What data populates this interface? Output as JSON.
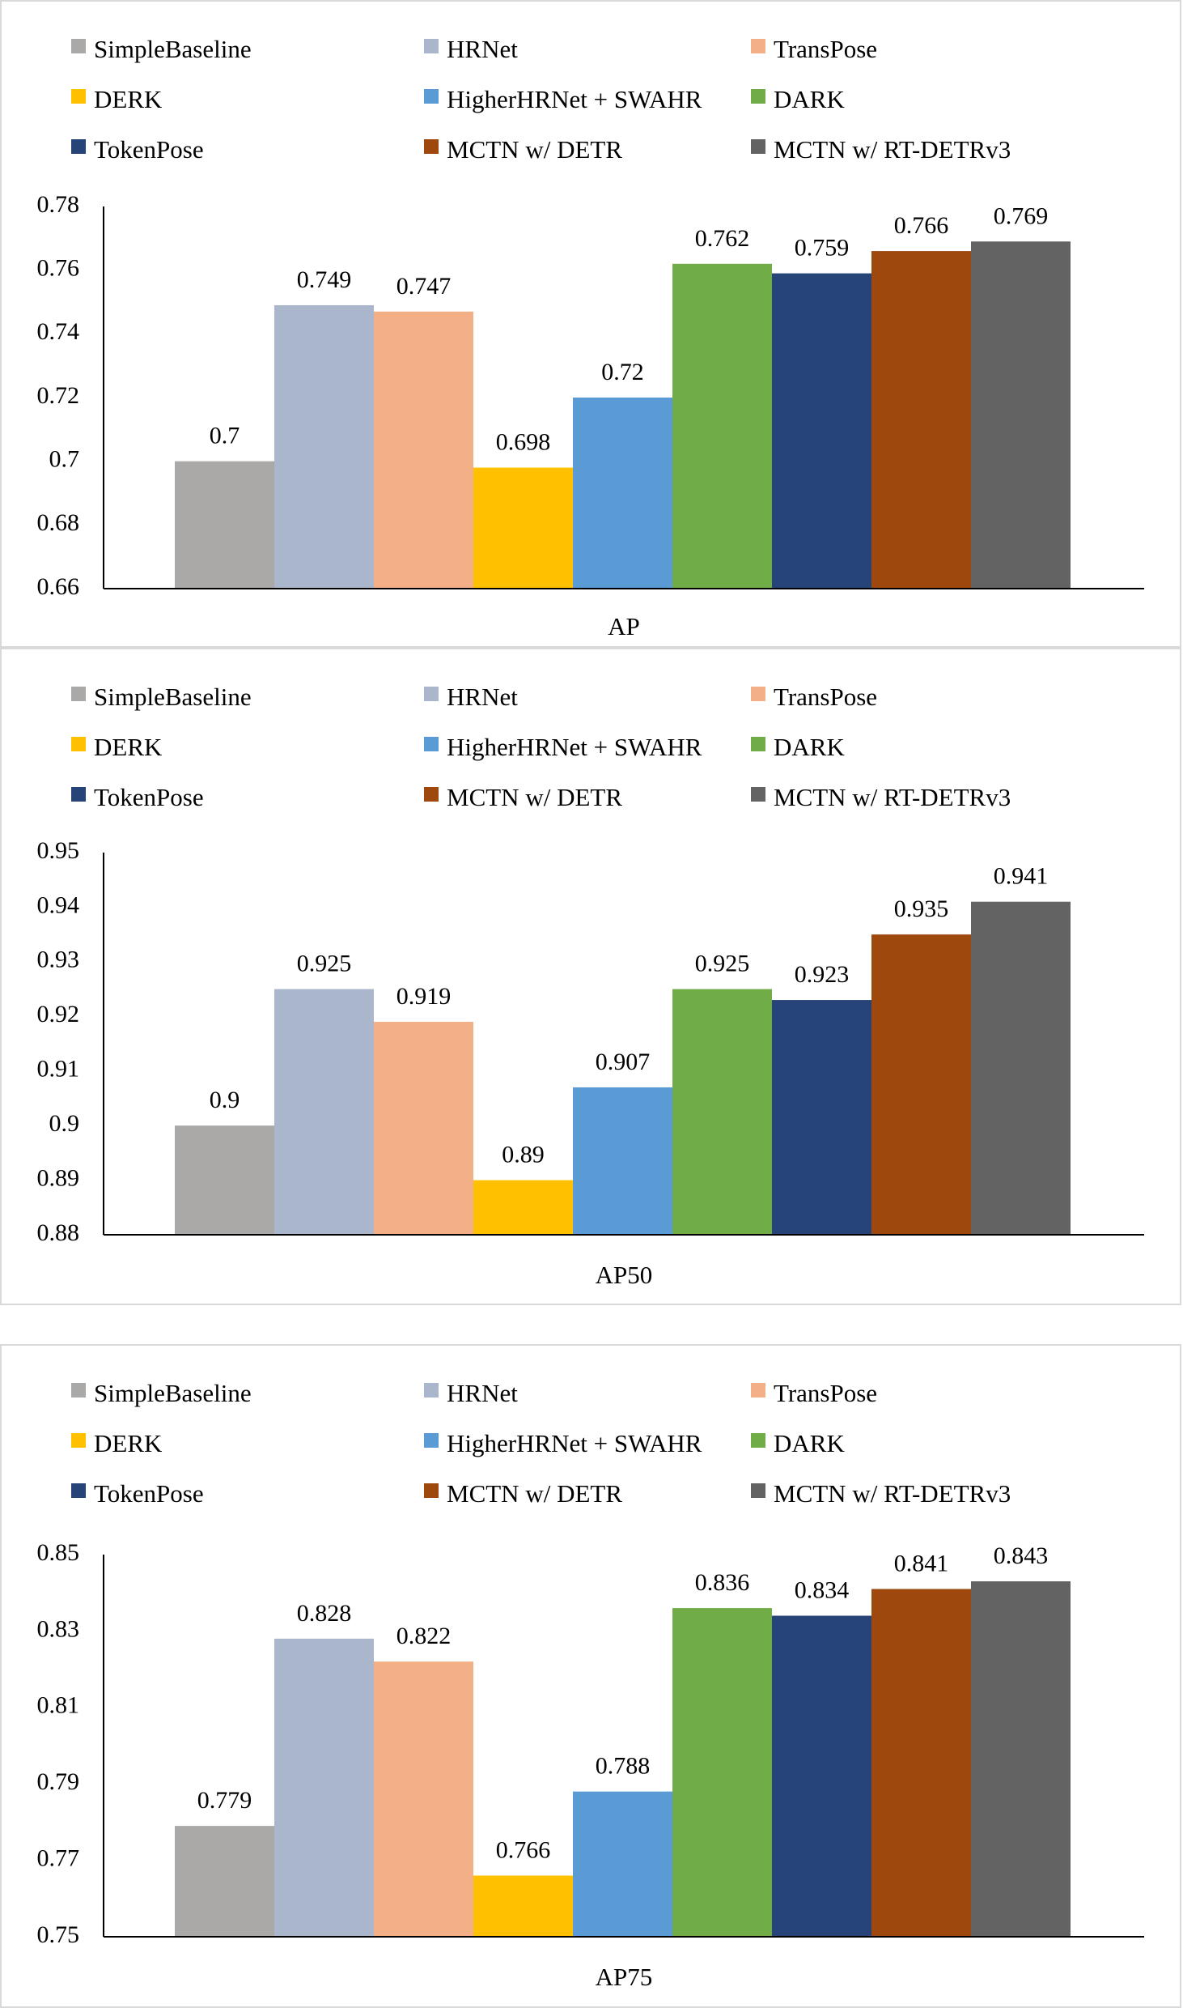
{
  "legend": [
    {
      "name": "SimpleBaseline",
      "color": "#ABA9A8"
    },
    {
      "name": "HRNet",
      "color": "#A9B6CC"
    },
    {
      "name": "TransPose",
      "color": "#F3AF86"
    },
    {
      "name": "DERK",
      "color": "#FFC000"
    },
    {
      "name": "HigherHRNet + SWAHR",
      "color": "#5B9BD5"
    },
    {
      "name": "DARK",
      "color": "#70AD47"
    },
    {
      "name": "TokenPose",
      "color": "#264478"
    },
    {
      "name": "MCTN w/ DETR",
      "color": "#9E480E"
    },
    {
      "name": "MCTN w/ RT-DETRv3",
      "color": "#636363"
    }
  ],
  "chart_data": [
    {
      "type": "bar",
      "title": "",
      "xlabel": "AP",
      "ylabel": "",
      "ylim": [
        0.66,
        0.78
      ],
      "yticks": [
        "0.66",
        "0.68",
        "0.7",
        "0.72",
        "0.74",
        "0.76",
        "0.78"
      ],
      "categories": [
        "SimpleBaseline",
        "HRNet",
        "TransPose",
        "DERK",
        "HigherHRNet + SWAHR",
        "DARK",
        "TokenPose",
        "MCTN w/ DETR",
        "MCTN w/ RT-DETRv3"
      ],
      "values": [
        0.7,
        0.749,
        0.747,
        0.698,
        0.72,
        0.762,
        0.759,
        0.766,
        0.769
      ],
      "labels": [
        "0.7",
        "0.749",
        "0.747",
        "0.698",
        "0.72",
        "0.762",
        "0.759",
        "0.766",
        "0.769"
      ]
    },
    {
      "type": "bar",
      "title": "",
      "xlabel": "AP50",
      "ylabel": "",
      "ylim": [
        0.88,
        0.95
      ],
      "yticks": [
        "0.88",
        "0.89",
        "0.9",
        "0.91",
        "0.92",
        "0.93",
        "0.94",
        "0.95"
      ],
      "categories": [
        "SimpleBaseline",
        "HRNet",
        "TransPose",
        "DERK",
        "HigherHRNet + SWAHR",
        "DARK",
        "TokenPose",
        "MCTN w/ DETR",
        "MCTN w/ RT-DETRv3"
      ],
      "values": [
        0.9,
        0.925,
        0.919,
        0.89,
        0.907,
        0.925,
        0.923,
        0.935,
        0.941
      ],
      "labels": [
        "0.9",
        "0.925",
        "0.919",
        "0.89",
        "0.907",
        "0.925",
        "0.923",
        "0.935",
        "0.941"
      ]
    },
    {
      "type": "bar",
      "title": "",
      "xlabel": "AP75",
      "ylabel": "",
      "ylim": [
        0.75,
        0.85
      ],
      "yticks": [
        "0.75",
        "0.77",
        "0.79",
        "0.81",
        "0.83",
        "0.85"
      ],
      "categories": [
        "SimpleBaseline",
        "HRNet",
        "TransPose",
        "DERK",
        "HigherHRNet + SWAHR",
        "DARK",
        "TokenPose",
        "MCTN w/ DETR",
        "MCTN w/ RT-DETRv3"
      ],
      "values": [
        0.779,
        0.828,
        0.822,
        0.766,
        0.788,
        0.836,
        0.834,
        0.841,
        0.843
      ],
      "labels": [
        "0.779",
        "0.828",
        "0.822",
        "0.766",
        "0.788",
        "0.836",
        "0.834",
        "0.841",
        "0.843"
      ]
    }
  ]
}
